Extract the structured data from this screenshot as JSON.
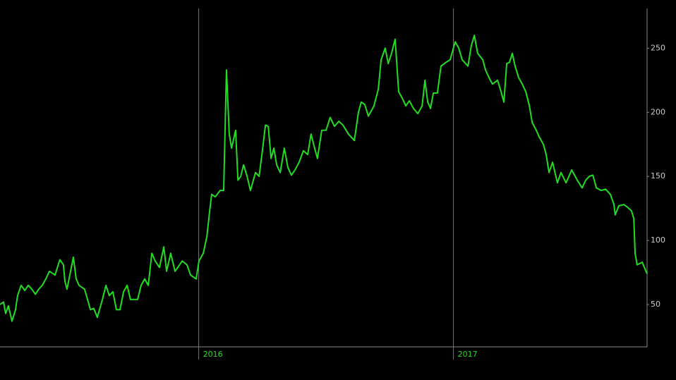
{
  "chart_data": {
    "type": "line",
    "x": [
      2015.22,
      2015.234,
      2015.242,
      2015.253,
      2015.267,
      2015.281,
      2015.289,
      2015.303,
      2015.317,
      2015.331,
      2015.345,
      2015.359,
      2015.372,
      2015.386,
      2015.4,
      2015.414,
      2015.436,
      2015.455,
      2015.469,
      2015.475,
      2015.483,
      2015.497,
      2015.508,
      2015.519,
      2015.53,
      2015.552,
      2015.575,
      2015.588,
      2015.602,
      2015.622,
      2015.636,
      2015.649,
      2015.663,
      2015.677,
      2015.691,
      2015.705,
      2015.719,
      2015.732,
      2015.76,
      2015.774,
      2015.788,
      2015.802,
      2015.816,
      2015.829,
      2015.846,
      2015.863,
      2015.874,
      2015.89,
      2015.907,
      2015.918,
      2015.935,
      2015.954,
      2015.968,
      2015.99,
      2016.001,
      2016.018,
      2016.032,
      2016.043,
      2016.051,
      2016.065,
      2016.084,
      2016.098,
      2016.109,
      2016.12,
      2016.129,
      2016.145,
      2016.154,
      2016.165,
      2016.176,
      2016.19,
      2016.203,
      2016.223,
      2016.237,
      2016.25,
      2016.262,
      2016.273,
      2016.284,
      2016.295,
      2016.306,
      2016.32,
      2016.336,
      2016.35,
      2016.364,
      2016.378,
      2016.394,
      2016.411,
      2016.428,
      2016.441,
      2016.455,
      2016.466,
      2016.483,
      2016.5,
      2016.516,
      2016.533,
      2016.55,
      2016.566,
      2016.588,
      2016.611,
      2016.627,
      2016.638,
      2016.652,
      2016.666,
      2016.688,
      2016.705,
      2016.716,
      2016.732,
      2016.744,
      2016.757,
      2016.771,
      2016.785,
      2016.799,
      2016.813,
      2016.827,
      2016.843,
      2016.86,
      2016.877,
      2016.888,
      2016.899,
      2016.91,
      2016.921,
      2016.937,
      2016.951,
      2016.971,
      2016.987,
      2017.007,
      2017.021,
      2017.034,
      2017.057,
      2017.07,
      2017.082,
      2017.095,
      2017.115,
      2017.126,
      2017.142,
      2017.153,
      2017.173,
      2017.187,
      2017.198,
      2017.209,
      2017.22,
      2017.231,
      2017.242,
      2017.256,
      2017.27,
      2017.284,
      2017.298,
      2017.309,
      2017.325,
      2017.336,
      2017.353,
      2017.364,
      2017.375,
      2017.389,
      2017.408,
      2017.422,
      2017.442,
      2017.464,
      2017.486,
      2017.505,
      2017.519,
      2017.533,
      2017.547,
      2017.561,
      2017.58,
      2017.597,
      2017.616,
      2017.63,
      2017.635,
      2017.649,
      2017.669,
      2017.683,
      2017.699,
      2017.708,
      2017.713,
      2017.721,
      2017.741,
      2017.76
    ],
    "series": [
      {
        "color": "#22dd22",
        "values": [
          50,
          52,
          43,
          49,
          37,
          46,
          57,
          65,
          61,
          65,
          62,
          58,
          62,
          65,
          70,
          76,
          73,
          85,
          81,
          68,
          62,
          76,
          87,
          70,
          65,
          62,
          46,
          47,
          40,
          54,
          65,
          57,
          60,
          46,
          46,
          60,
          65,
          54,
          54,
          65,
          70,
          65,
          90,
          84,
          79,
          95,
          76,
          90,
          76,
          79,
          84,
          81,
          73,
          70,
          84,
          90,
          103,
          123,
          136,
          134,
          139,
          139,
          233,
          183,
          172,
          186,
          147,
          150,
          159,
          150,
          139,
          153,
          150,
          170,
          190,
          189,
          164,
          172,
          159,
          153,
          172,
          157,
          151,
          155,
          161,
          170,
          167,
          183,
          172,
          164,
          186,
          186,
          196,
          189,
          193,
          190,
          183,
          178,
          200,
          208,
          206,
          197,
          205,
          218,
          241,
          250,
          238,
          246,
          257,
          216,
          211,
          205,
          209,
          203,
          199,
          205,
          225,
          208,
          203,
          215,
          215,
          236,
          239,
          241,
          255,
          250,
          241,
          236,
          252,
          260,
          246,
          241,
          233,
          226,
          222,
          225,
          216,
          208,
          238,
          239,
          246,
          236,
          227,
          222,
          216,
          205,
          192,
          186,
          181,
          175,
          167,
          153,
          161,
          145,
          153,
          145,
          155,
          147,
          141,
          147,
          150,
          151,
          141,
          139,
          140,
          136,
          128,
          120,
          127,
          128,
          126,
          123,
          117,
          90,
          81,
          83,
          74
        ]
      }
    ],
    "xlim": [
      2015.22,
      2017.76
    ],
    "xticks": [
      2016,
      2017
    ],
    "ylim": [
      17,
      281
    ],
    "yticks": [
      50,
      100,
      150,
      200,
      250
    ]
  }
}
